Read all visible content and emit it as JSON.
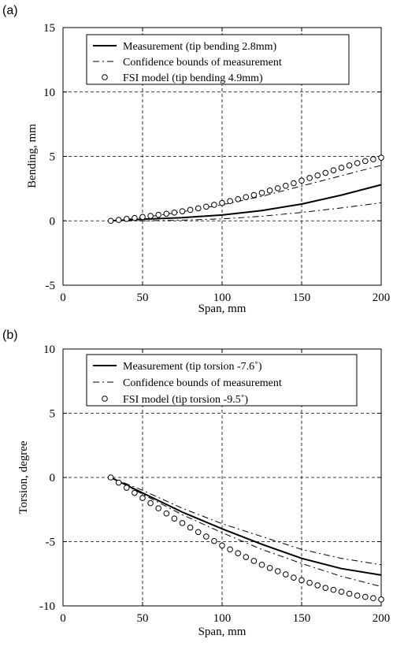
{
  "chart_data": [
    {
      "panel_label": "(a)",
      "type": "line",
      "xlabel": "Span, mm",
      "ylabel": "Bending, mm",
      "xlim": [
        0,
        200
      ],
      "ylim": [
        -5,
        15
      ],
      "xticks": [
        0,
        50,
        100,
        150,
        200
      ],
      "yticks": [
        -5,
        0,
        5,
        10,
        15
      ],
      "xtick_labels": [
        "0",
        "50",
        "100",
        "150",
        "200"
      ],
      "ytick_labels": [
        "-5",
        "0",
        "5",
        "10",
        "15"
      ],
      "grid": true,
      "legend_position": "top",
      "legend": [
        "Measurement (tip bending 2.8mm)",
        "Confidence bounds of measurement",
        "FSI model (tip bending 4.9mm)"
      ],
      "series": [
        {
          "name": "Measurement (tip bending 2.8mm)",
          "style": "solid",
          "x": [
            30,
            50,
            75,
            100,
            125,
            150,
            175,
            200
          ],
          "y": [
            0,
            0.12,
            0.25,
            0.45,
            0.8,
            1.3,
            2.0,
            2.8
          ]
        },
        {
          "name": "Confidence bounds of measurement",
          "style": "dashdot",
          "x": [
            30,
            50,
            75,
            100,
            125,
            150,
            175,
            200
          ],
          "y": [
            0,
            0.25,
            0.7,
            1.25,
            1.9,
            2.7,
            3.5,
            4.3
          ]
        },
        {
          "name": "Confidence bounds of measurement",
          "style": "dashdot",
          "x": [
            30,
            50,
            75,
            100,
            125,
            150,
            175,
            200
          ],
          "y": [
            0,
            0,
            0.05,
            0.15,
            0.35,
            0.65,
            1.0,
            1.4
          ]
        },
        {
          "name": "FSI model (tip bending 4.9mm)",
          "style": "circle",
          "x": [
            30,
            35,
            40,
            45,
            50,
            55,
            60,
            65,
            70,
            75,
            80,
            85,
            90,
            95,
            100,
            105,
            110,
            115,
            120,
            125,
            130,
            135,
            140,
            145,
            150,
            155,
            160,
            165,
            170,
            175,
            180,
            185,
            190,
            195,
            200
          ],
          "y": [
            0,
            0.07,
            0.15,
            0.22,
            0.3,
            0.38,
            0.46,
            0.55,
            0.64,
            0.74,
            0.85,
            0.97,
            1.1,
            1.24,
            1.38,
            1.53,
            1.68,
            1.84,
            2.0,
            2.17,
            2.35,
            2.53,
            2.72,
            2.92,
            3.12,
            3.32,
            3.52,
            3.72,
            3.92,
            4.12,
            4.3,
            4.48,
            4.64,
            4.78,
            4.9
          ]
        }
      ]
    },
    {
      "panel_label": "(b)",
      "type": "line",
      "xlabel": "Span, mm",
      "ylabel": "Torsion, degree",
      "xlim": [
        0,
        200
      ],
      "ylim": [
        -10,
        10
      ],
      "xticks": [
        0,
        50,
        100,
        150,
        200
      ],
      "yticks": [
        -10,
        -5,
        0,
        5,
        10
      ],
      "xtick_labels": [
        "0",
        "50",
        "100",
        "150",
        "200"
      ],
      "ytick_labels": [
        "-10",
        "-5",
        "0",
        "5",
        "10"
      ],
      "grid": true,
      "legend_position": "top",
      "legend": [
        "Measurement (tip torsion -7.6˚)",
        "Confidence bounds of measurement",
        "FSI model (tip torsion -9.5˚)"
      ],
      "series": [
        {
          "name": "Measurement (tip torsion -7.6˚)",
          "style": "solid",
          "x": [
            30,
            50,
            75,
            100,
            125,
            150,
            175,
            200
          ],
          "y": [
            0,
            -1.2,
            -2.7,
            -4.0,
            -5.2,
            -6.3,
            -7.1,
            -7.6
          ]
        },
        {
          "name": "Confidence bounds of measurement",
          "style": "dashdot",
          "x": [
            30,
            50,
            75,
            100,
            125,
            150,
            175,
            200
          ],
          "y": [
            0,
            -1.0,
            -2.4,
            -3.6,
            -4.6,
            -5.6,
            -6.3,
            -6.8
          ]
        },
        {
          "name": "Confidence bounds of measurement",
          "style": "dashdot",
          "x": [
            30,
            50,
            75,
            100,
            125,
            150,
            175,
            200
          ],
          "y": [
            0,
            -1.3,
            -2.9,
            -4.3,
            -5.6,
            -6.7,
            -7.7,
            -8.5
          ]
        },
        {
          "name": "FSI model (tip torsion -9.5˚)",
          "style": "circle",
          "x": [
            30,
            35,
            40,
            45,
            50,
            55,
            60,
            65,
            70,
            75,
            80,
            85,
            90,
            95,
            100,
            105,
            110,
            115,
            120,
            125,
            130,
            135,
            140,
            145,
            150,
            155,
            160,
            165,
            170,
            175,
            180,
            185,
            190,
            195,
            200
          ],
          "y": [
            0,
            -0.4,
            -0.8,
            -1.2,
            -1.6,
            -2.0,
            -2.4,
            -2.8,
            -3.2,
            -3.55,
            -3.9,
            -4.25,
            -4.6,
            -4.95,
            -5.3,
            -5.6,
            -5.9,
            -6.2,
            -6.5,
            -6.8,
            -7.05,
            -7.3,
            -7.55,
            -7.8,
            -8.0,
            -8.2,
            -8.4,
            -8.6,
            -8.75,
            -8.9,
            -9.05,
            -9.2,
            -9.3,
            -9.4,
            -9.5
          ]
        }
      ]
    }
  ]
}
